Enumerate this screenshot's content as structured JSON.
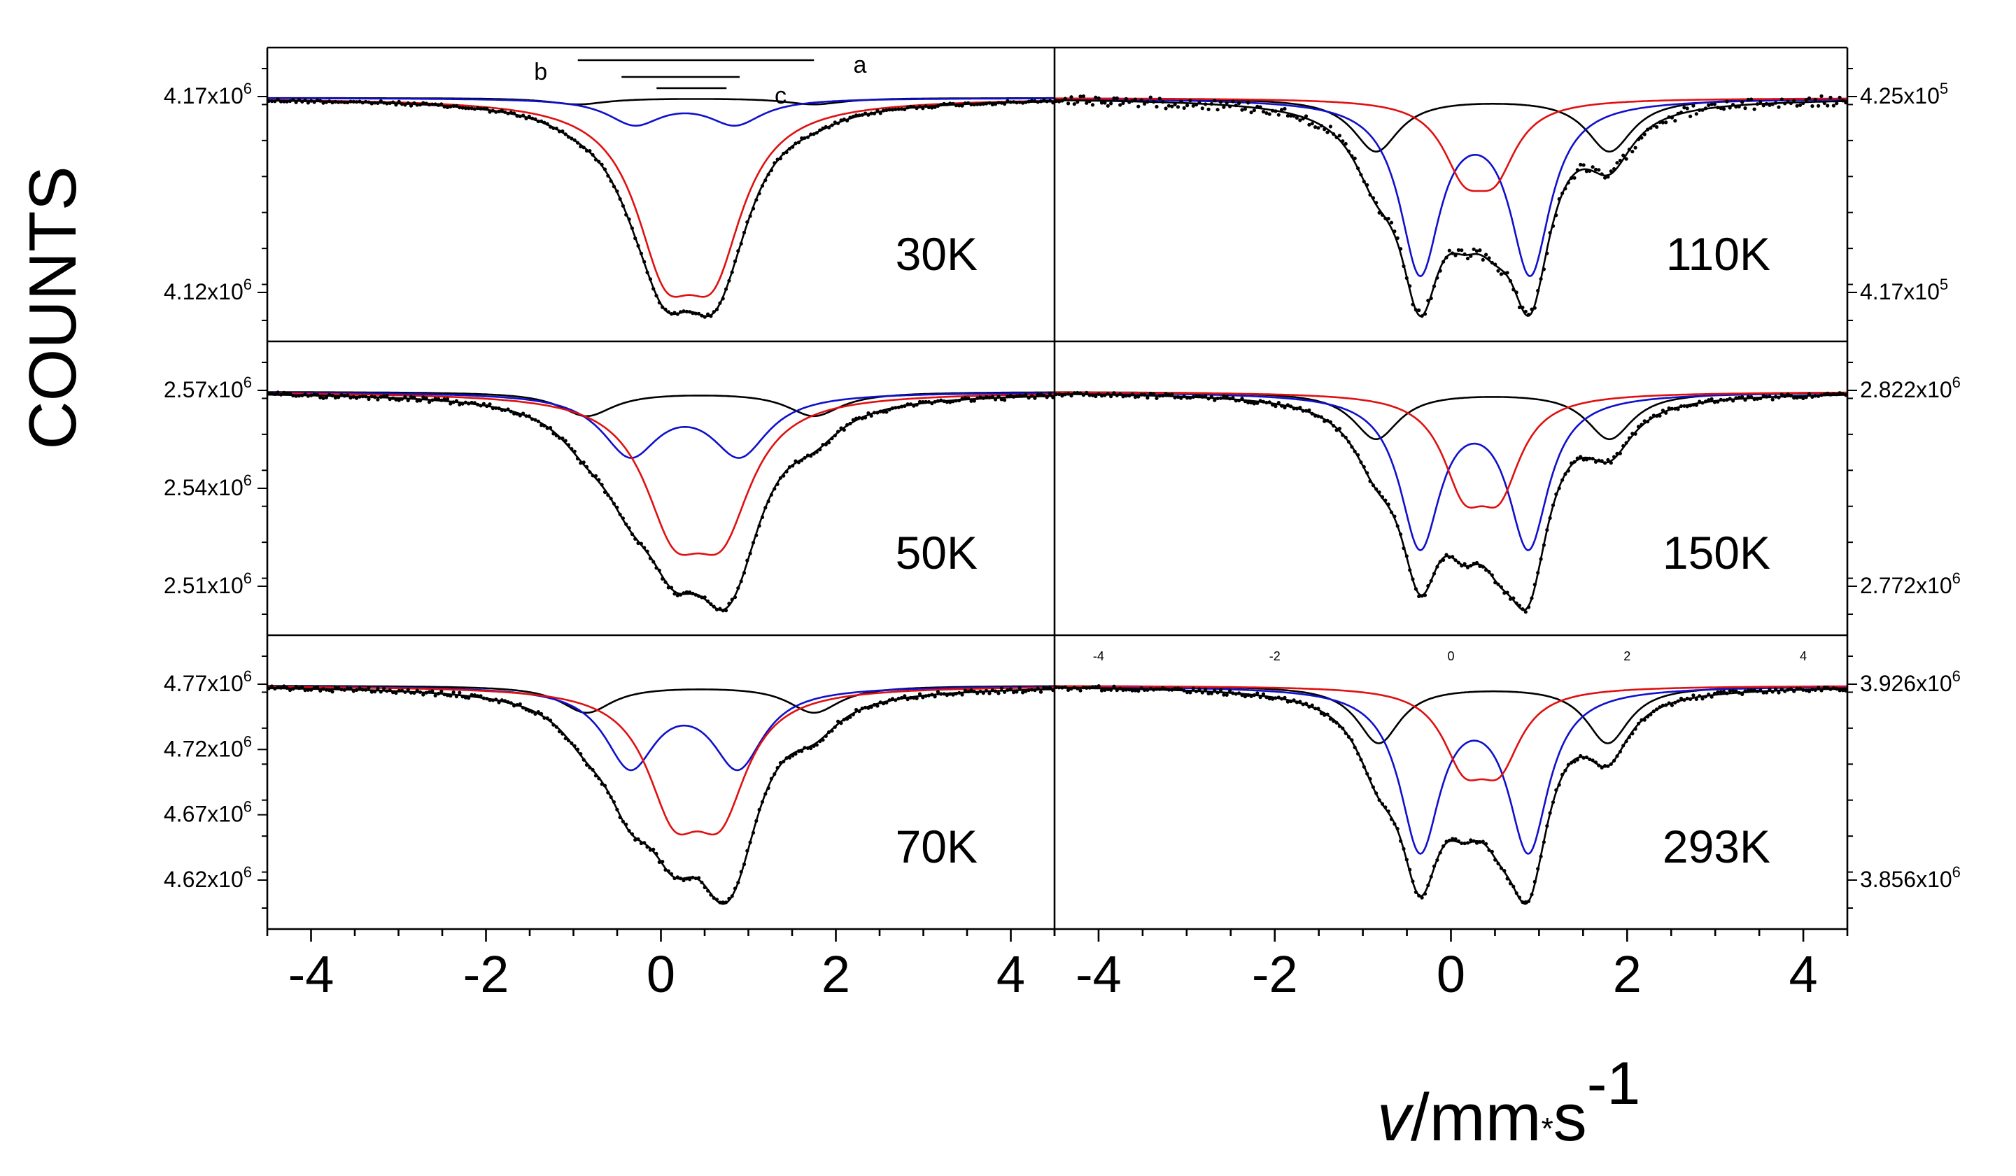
{
  "chart_data": {
    "type": "line",
    "title": "",
    "ylabel": "COUNTS",
    "xlabel_main": "v",
    "xlabel_units": "/mm",
    "xlabel_dot": "*",
    "xlabel_s": "s",
    "xlabel_exp": "-1",
    "xlim": [
      -4.5,
      4.5
    ],
    "x_ticks": [
      "-4",
      "-2",
      "0",
      "2",
      "4"
    ],
    "x_tick_values": [
      -4,
      -2,
      0,
      2,
      4
    ],
    "top_small_ticks": [
      "-4",
      "-2",
      "0",
      "2",
      "4"
    ],
    "legend": "none",
    "series_colors": {
      "data": "#000000",
      "total": "#000000",
      "site_b": "#000000",
      "site_a": "#1010cc",
      "site_c": "#e01010"
    },
    "panels": [
      {
        "temperature": "30K",
        "y_side": "left",
        "y_tick_labels": [
          {
            "base": "4.17x10",
            "exp": "6"
          },
          {
            "base": "4.12x10",
            "exp": "6"
          }
        ],
        "baseline": 1.0,
        "noise": 0.006,
        "components": {
          "black": {
            "centers": [
              -0.95,
              1.75
            ],
            "width": 0.4,
            "depth": 0.035
          },
          "blue": {
            "centers": [
              -0.3,
              0.85
            ],
            "width": 0.38,
            "depth": 0.14
          },
          "red": {
            "centers": [
              0.05,
              0.6
            ],
            "width": 0.42,
            "depth": 0.78
          }
        },
        "annotations": {
          "labels": [
            "b",
            "a",
            "c"
          ],
          "bars": [
            [
              -0.95,
              1.75
            ],
            [
              -0.45,
              0.9
            ],
            [
              -0.05,
              0.75
            ]
          ]
        }
      },
      {
        "temperature": "110K",
        "y_side": "right",
        "y_tick_labels": [
          {
            "base": "4.25x10",
            "exp": "5"
          },
          {
            "base": "4.17x10",
            "exp": "5"
          }
        ],
        "baseline": 1.0,
        "noise": 0.018,
        "components": {
          "black": {
            "centers": [
              -0.85,
              1.8
            ],
            "width": 0.32,
            "depth": 0.28
          },
          "blue": {
            "centers": [
              -0.35,
              0.9
            ],
            "width": 0.28,
            "depth": 0.9
          },
          "red": {
            "centers": [
              0.15,
              0.5
            ],
            "width": 0.3,
            "depth": 0.33
          }
        }
      },
      {
        "temperature": "50K",
        "y_side": "left",
        "y_tick_labels": [
          {
            "base": "2.57x10",
            "exp": "6"
          },
          {
            "base": "2.54x10",
            "exp": "6"
          },
          {
            "base": "2.51x10",
            "exp": "6"
          }
        ],
        "baseline": 1.0,
        "noise": 0.008,
        "components": {
          "black": {
            "centers": [
              -0.85,
              1.75
            ],
            "width": 0.38,
            "depth": 0.13
          },
          "blue": {
            "centers": [
              -0.35,
              0.9
            ],
            "width": 0.4,
            "depth": 0.33
          },
          "red": {
            "centers": [
              0.15,
              0.7
            ],
            "width": 0.42,
            "depth": 0.63
          }
        }
      },
      {
        "temperature": "150K",
        "y_side": "right",
        "y_tick_labels": [
          {
            "base": "2.822x10",
            "exp": "6"
          },
          {
            "base": "2.772x10",
            "exp": "6"
          }
        ],
        "baseline": 1.0,
        "noise": 0.008,
        "components": {
          "black": {
            "centers": [
              -0.85,
              1.8
            ],
            "width": 0.32,
            "depth": 0.26
          },
          "blue": {
            "centers": [
              -0.35,
              0.88
            ],
            "width": 0.28,
            "depth": 0.84
          },
          "red": {
            "centers": [
              0.15,
              0.55
            ],
            "width": 0.3,
            "depth": 0.46
          }
        }
      },
      {
        "temperature": "70K",
        "y_side": "left",
        "y_tick_labels": [
          {
            "base": "4.77x10",
            "exp": "6"
          },
          {
            "base": "4.72x10",
            "exp": "6"
          },
          {
            "base": "4.67x10",
            "exp": "6"
          },
          {
            "base": "4.62x10",
            "exp": "6"
          }
        ],
        "baseline": 1.0,
        "noise": 0.008,
        "components": {
          "black": {
            "centers": [
              -0.85,
              1.75
            ],
            "width": 0.36,
            "depth": 0.16
          },
          "blue": {
            "centers": [
              -0.35,
              0.88
            ],
            "width": 0.36,
            "depth": 0.47
          },
          "red": {
            "centers": [
              0.15,
              0.68
            ],
            "width": 0.38,
            "depth": 0.65
          }
        }
      },
      {
        "temperature": "293K",
        "y_side": "right",
        "y_tick_labels": [
          {
            "base": "3.926x10",
            "exp": "6"
          },
          {
            "base": "3.856x10",
            "exp": "6"
          }
        ],
        "baseline": 1.0,
        "noise": 0.008,
        "components": {
          "black": {
            "centers": [
              -0.82,
              1.78
            ],
            "width": 0.3,
            "depth": 0.32
          },
          "blue": {
            "centers": [
              -0.35,
              0.88
            ],
            "width": 0.28,
            "depth": 0.9
          },
          "red": {
            "centers": [
              0.15,
              0.55
            ],
            "width": 0.3,
            "depth": 0.38
          }
        }
      }
    ]
  }
}
